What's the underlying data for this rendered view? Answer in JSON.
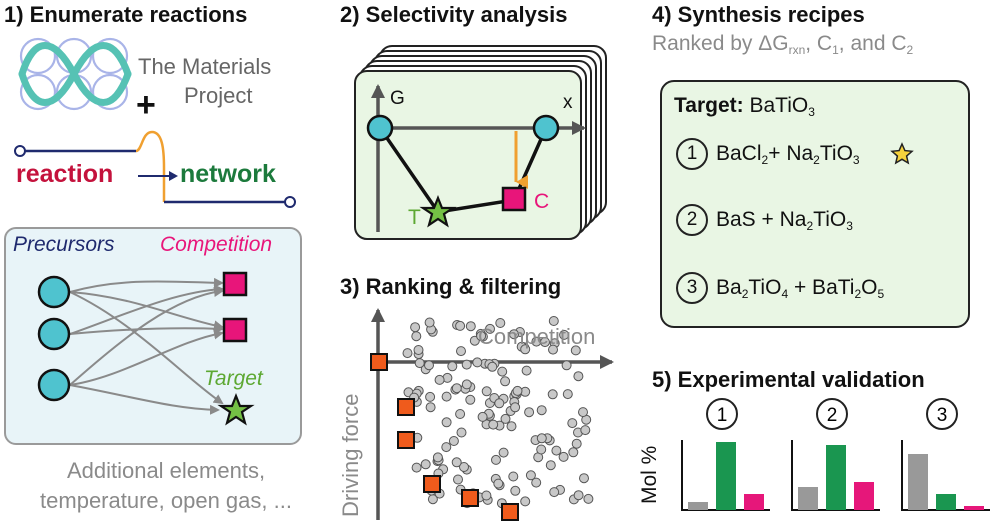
{
  "panel1": {
    "title": "1) Enumerate reactions",
    "mp_text_1": "The Materials",
    "mp_text_2": "Project",
    "plus": "+",
    "reaction_word": "reaction",
    "network_word": "network",
    "precursors_label": "Precursors",
    "competition_label": "Competition",
    "target_label": "Target",
    "note_line_1": "Additional elements,",
    "note_line_2": "temperature, open gas, ..."
  },
  "panel2": {
    "title": "2) Selectivity analysis",
    "axis_g": "G",
    "axis_x": "x",
    "label_t": "T",
    "label_c": "C"
  },
  "panel3": {
    "title": "3) Ranking & filtering",
    "x_label": "Competition",
    "y_label": "Driving force"
  },
  "panel4": {
    "title": "4) Synthesis recipes",
    "subtitle_prefix": "Ranked by ΔG",
    "subtitle_sub_rxn": "rxn",
    "subtitle_c": ", C",
    "subtitle_sub_1": "1",
    "subtitle_and": ", and C",
    "subtitle_sub_2": "2",
    "target_label": "Target:",
    "target_formula": "BaTiO3",
    "recipes": [
      {
        "num": "1",
        "text": "BaCl2+ Na2TiO3",
        "starred": true
      },
      {
        "num": "2",
        "text": "BaS + Na2TiO3",
        "starred": false
      },
      {
        "num": "3",
        "text": "Ba2TiO4 + BaTi2O5",
        "starred": false
      }
    ]
  },
  "panel5": {
    "title": "5) Experimental validation",
    "y_label": "Mol %",
    "colors": {
      "gray": "#999999",
      "green": "#1a9650",
      "magenta": "#e6177a"
    }
  },
  "colors": {
    "precursor_fill": "#4fc3cf",
    "competition_fill": "#e8157a",
    "target_fill": "#74c045",
    "orange_square": "#ef5b1c",
    "arrow_orange": "#f0a030",
    "panel_bg_blue": "#e8f4f8",
    "panel_bg_green": "#e9f6e4",
    "reaction_red": "#c4123c",
    "network_green": "#1c7a3c",
    "mp_teal": "#56c2b4",
    "mp_lavender": "#a9b4e8"
  },
  "chart_data": {
    "type": "bar",
    "title": "5) Experimental validation",
    "ylabel": "Mol %",
    "groups": [
      "1",
      "2",
      "3"
    ],
    "series_colors": [
      "gray",
      "green",
      "magenta"
    ],
    "values": [
      [
        0.08,
        0.68,
        0.16
      ],
      [
        0.23,
        0.65,
        0.28
      ],
      [
        0.56,
        0.16,
        0.04
      ]
    ]
  }
}
